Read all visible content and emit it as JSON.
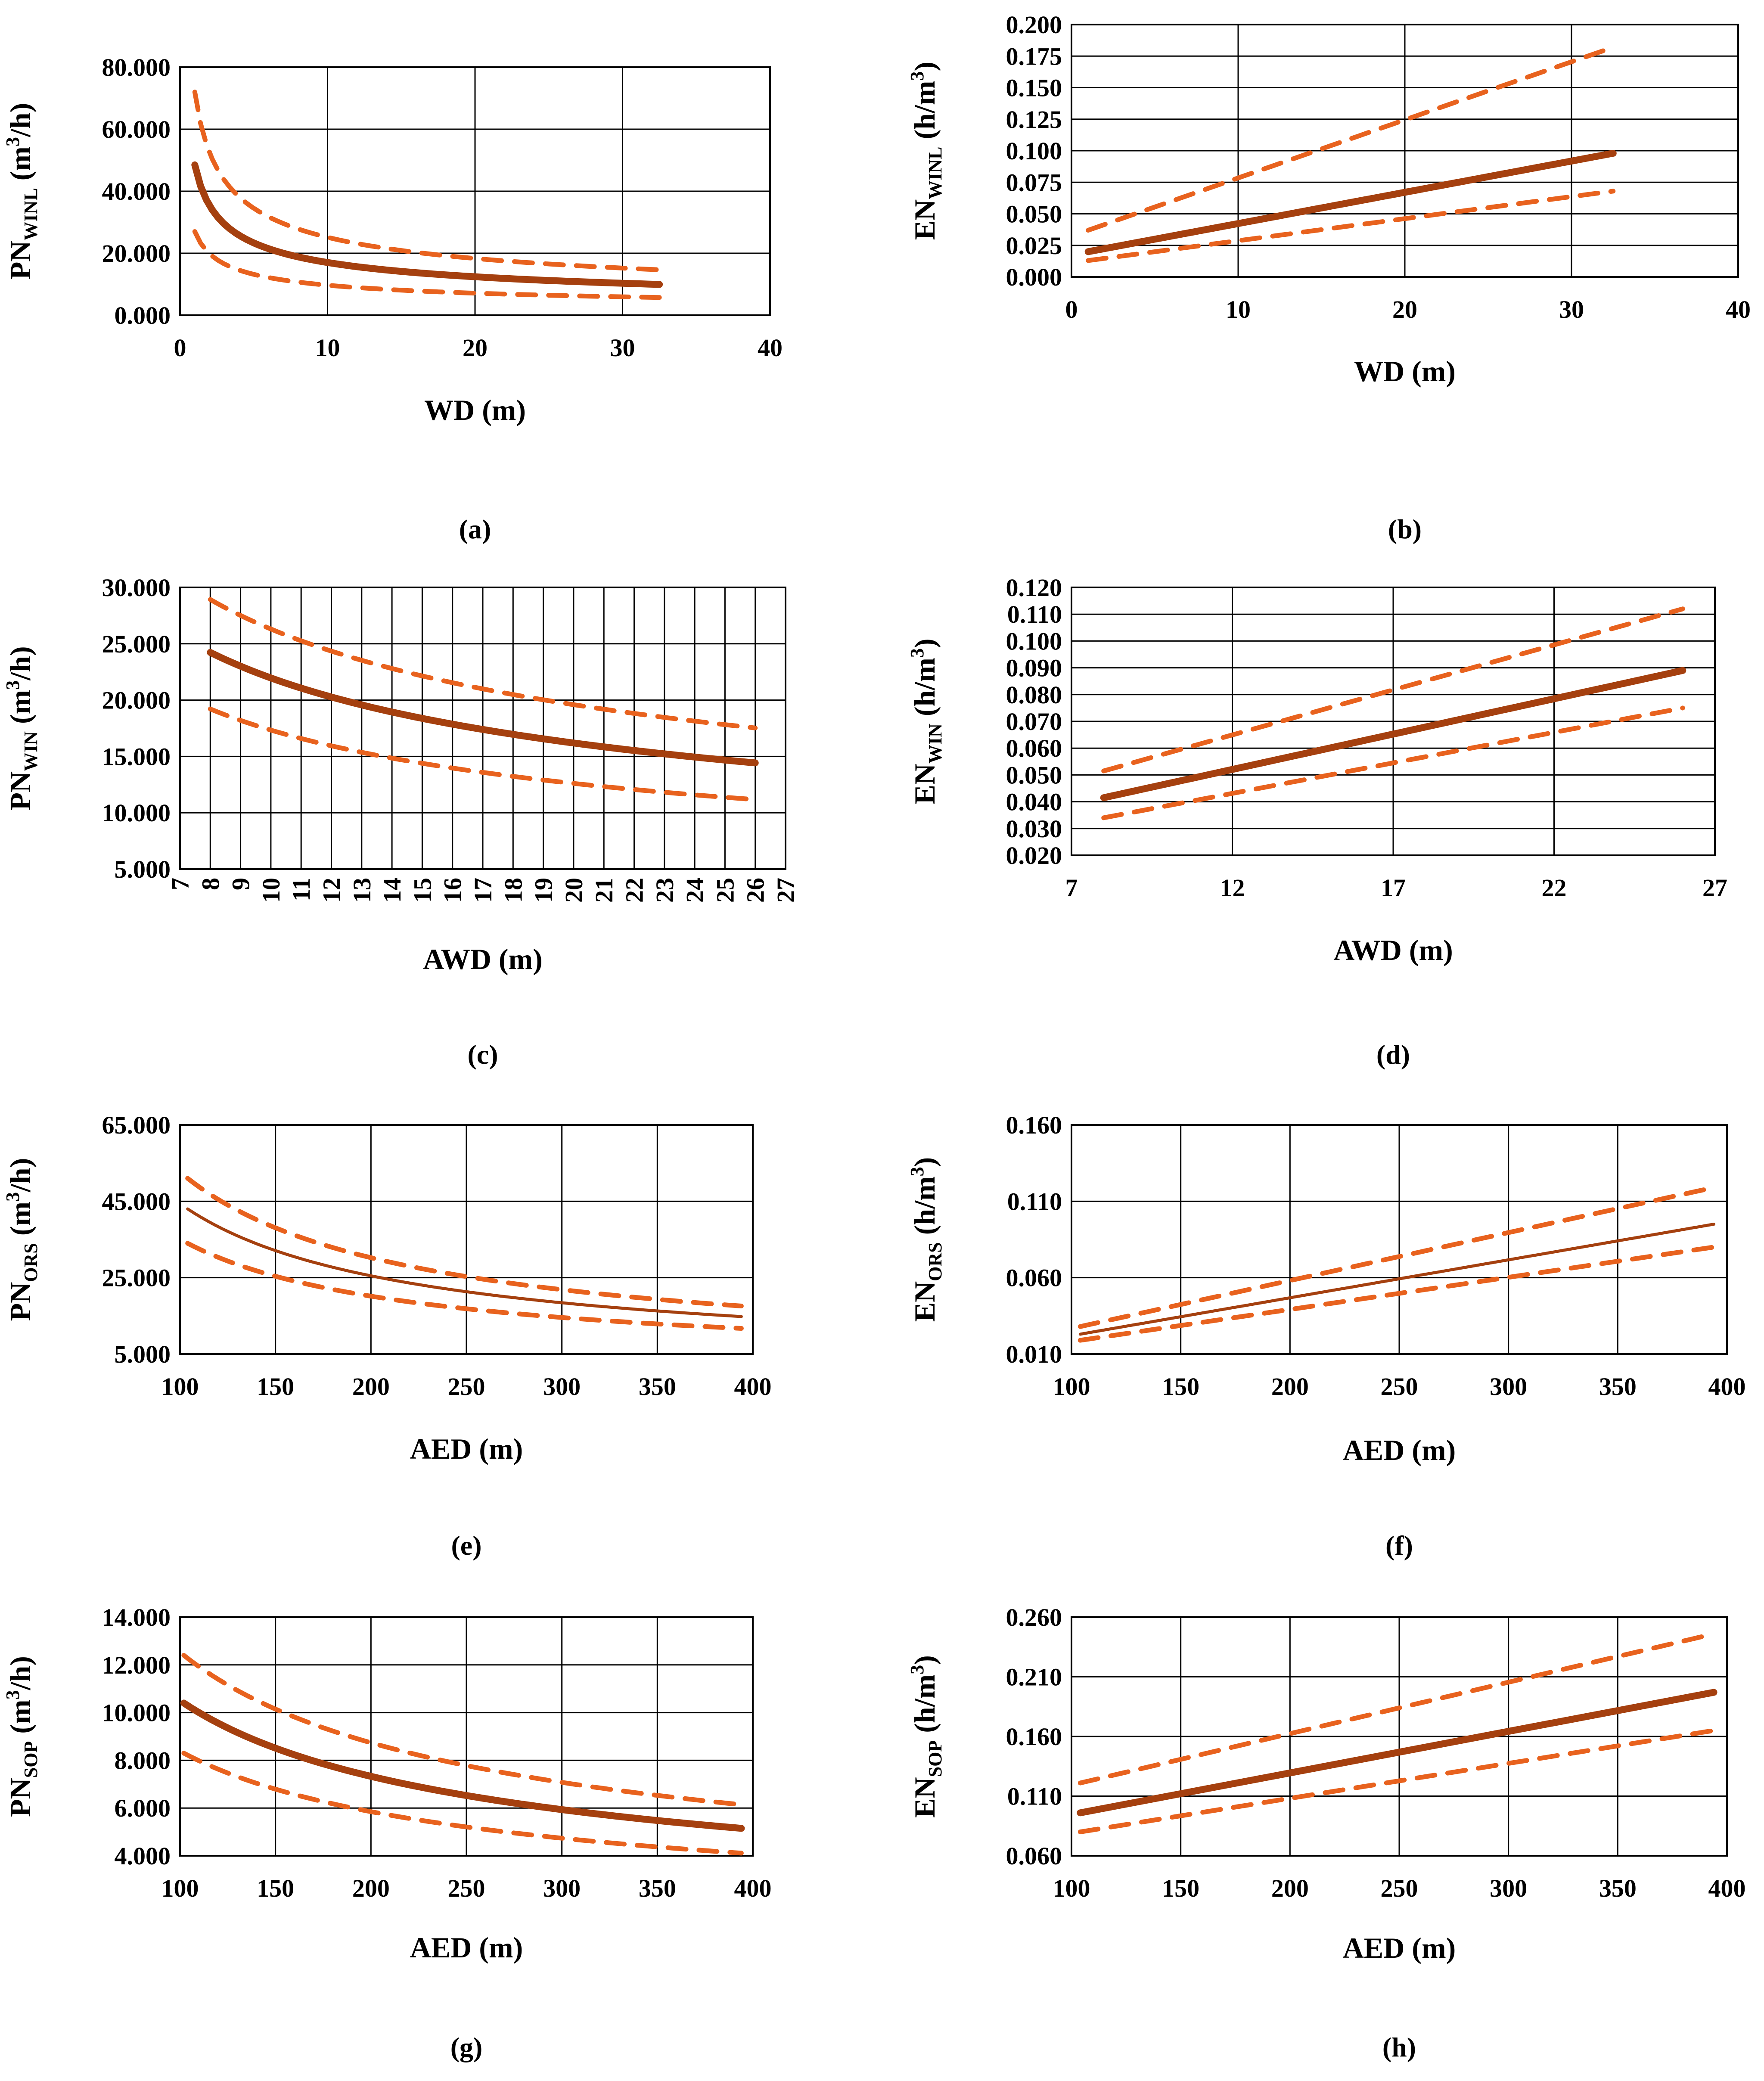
{
  "figure": {
    "title": "",
    "colors": {
      "fit": "#A5400F",
      "bands": "#E8621E",
      "grid": "#000000"
    }
  },
  "chart_data": [
    {
      "id": "a",
      "panel_label": "(a)",
      "type": "line",
      "xlabel": "WD (m)",
      "ylabel": {
        "base": "PN",
        "sub": "WINL",
        "pre_sup": " (m",
        "sup": "3",
        "post": "/h)"
      },
      "xlim": [
        0,
        40
      ],
      "ylim": [
        0,
        80000
      ],
      "xticks": [
        0,
        10,
        20,
        30,
        40
      ],
      "xtick_labels": [
        "0",
        "10",
        "20",
        "30",
        "40"
      ],
      "yticks": [
        0,
        20000,
        40000,
        60000,
        80000
      ],
      "ytick_labels": [
        "0.000",
        "20.000",
        "40.000",
        "60.000",
        "80.000"
      ],
      "fit_width": "thick",
      "series": [
        {
          "name": "fit",
          "style": "solid",
          "fn": "power",
          "a": 48500,
          "b": -0.455,
          "x_range": [
            1,
            32.5
          ]
        },
        {
          "name": "upper",
          "style": "dashed",
          "fn": "power",
          "a": 72000,
          "b": -0.457,
          "x_range": [
            1,
            32.5
          ]
        },
        {
          "name": "lower",
          "style": "dashed",
          "fn": "power",
          "a": 27000,
          "b": -0.445,
          "x_range": [
            1,
            32.5
          ]
        }
      ]
    },
    {
      "id": "b",
      "panel_label": "(b)",
      "type": "line",
      "xlabel": "WD (m)",
      "ylabel": {
        "base": "EN",
        "sub": "WINL",
        "pre_sup": " (h/m",
        "sup": "3",
        "post": ")"
      },
      "xlim": [
        0,
        40
      ],
      "ylim": [
        0,
        0.2
      ],
      "xticks": [
        0,
        10,
        20,
        30,
        40
      ],
      "xtick_labels": [
        "0",
        "10",
        "20",
        "30",
        "40"
      ],
      "yticks": [
        0,
        0.025,
        0.05,
        0.075,
        0.1,
        0.125,
        0.15,
        0.175,
        0.2
      ],
      "ytick_labels": [
        "0.000",
        "0.025",
        "0.050",
        "0.075",
        "0.100",
        "0.125",
        "0.150",
        "0.175",
        "0.200"
      ],
      "fit_width": "thick",
      "series": [
        {
          "name": "fit",
          "style": "solid",
          "fn": "linear",
          "x": [
            1,
            32.5
          ],
          "y": [
            0.02,
            0.098
          ]
        },
        {
          "name": "upper",
          "style": "dashed",
          "fn": "linear",
          "x": [
            1,
            32.5
          ],
          "y": [
            0.037,
            0.182
          ]
        },
        {
          "name": "lower",
          "style": "dashed",
          "fn": "linear",
          "x": [
            1,
            32.5
          ],
          "y": [
            0.013,
            0.068
          ]
        }
      ]
    },
    {
      "id": "c",
      "panel_label": "(c)",
      "type": "line",
      "xlabel": "AWD (m)",
      "ylabel": {
        "base": "PN",
        "sub": "WIN",
        "pre_sup": " (m",
        "sup": "3",
        "post": "/h)"
      },
      "xlim": [
        7,
        27
      ],
      "ylim": [
        5000,
        30000
      ],
      "xticks": [
        7,
        8,
        9,
        10,
        11,
        12,
        13,
        14,
        15,
        16,
        17,
        18,
        19,
        20,
        21,
        22,
        23,
        24,
        25,
        26,
        27
      ],
      "xtick_labels": [
        "7",
        "8",
        "9",
        "10",
        "11",
        "12",
        "13",
        "14",
        "15",
        "16",
        "17",
        "18",
        "19",
        "20",
        "21",
        "22",
        "23",
        "24",
        "25",
        "26",
        "27"
      ],
      "xtick_rotate": true,
      "yticks": [
        5000,
        10000,
        15000,
        20000,
        25000,
        30000
      ],
      "ytick_labels": [
        "5.000",
        "10.000",
        "15.000",
        "20.000",
        "25.000",
        "30.000"
      ],
      "fit_width": "thick",
      "series": [
        {
          "name": "fit",
          "style": "solid",
          "fn": "power",
          "a": 60500,
          "b": -0.44,
          "x_range": [
            8,
            26
          ]
        },
        {
          "name": "upper",
          "style": "dashed",
          "fn": "power",
          "a": 70000,
          "b": -0.425,
          "x_range": [
            8,
            26
          ]
        },
        {
          "name": "lower",
          "style": "dashed",
          "fn": "power",
          "a": 50000,
          "b": -0.46,
          "x_range": [
            8,
            26
          ]
        }
      ]
    },
    {
      "id": "d",
      "panel_label": "(d)",
      "type": "line",
      "xlabel": "AWD (m)",
      "ylabel": {
        "base": "EN",
        "sub": "WIN",
        "pre_sup": " (h/m",
        "sup": "3",
        "post": ")"
      },
      "xlim": [
        7,
        27
      ],
      "ylim": [
        0.02,
        0.12
      ],
      "xticks": [
        7,
        12,
        17,
        22,
        27
      ],
      "xtick_labels": [
        "7",
        "12",
        "17",
        "22",
        "27"
      ],
      "yticks": [
        0.02,
        0.03,
        0.04,
        0.05,
        0.06,
        0.07,
        0.08,
        0.09,
        0.1,
        0.11,
        0.12
      ],
      "ytick_labels": [
        "0.020",
        "0.030",
        "0.040",
        "0.050",
        "0.060",
        "0.070",
        "0.080",
        "0.090",
        "0.100",
        "0.110",
        "0.120"
      ],
      "fit_width": "thick",
      "series": [
        {
          "name": "fit",
          "style": "solid",
          "fn": "linear",
          "x": [
            8,
            26
          ],
          "y": [
            0.0415,
            0.089
          ]
        },
        {
          "name": "upper",
          "style": "dashed",
          "fn": "linear",
          "x": [
            8,
            26
          ],
          "y": [
            0.0515,
            0.112
          ]
        },
        {
          "name": "lower",
          "style": "dashed",
          "fn": "linear",
          "x": [
            8,
            26
          ],
          "y": [
            0.034,
            0.075
          ]
        }
      ]
    },
    {
      "id": "e",
      "panel_label": "(e)",
      "type": "line",
      "xlabel": "AED (m)",
      "ylabel": {
        "base": "PN",
        "sub": "ORS",
        "pre_sup": " (m",
        "sup": "3",
        "post": "/h)"
      },
      "xlim": [
        100,
        400
      ],
      "ylim": [
        5000,
        65000
      ],
      "xticks": [
        100,
        150,
        200,
        250,
        300,
        350,
        400
      ],
      "xtick_labels": [
        "100",
        "150",
        "200",
        "250",
        "300",
        "350",
        "400"
      ],
      "yticks": [
        5000,
        25000,
        45000,
        65000
      ],
      "ytick_labels": [
        "5.000",
        "25.000",
        "45.000",
        "65.000"
      ],
      "fit_width": "thin",
      "series": [
        {
          "name": "fit",
          "style": "solid",
          "fn": "power",
          "a": 43000,
          "b": -0.8,
          "x_range": [
            104,
            394
          ],
          "x0": 104
        },
        {
          "name": "upper",
          "style": "dashed",
          "fn": "power",
          "a": 51000,
          "b": -0.8,
          "x_range": [
            104,
            394
          ],
          "x0": 104
        },
        {
          "name": "lower",
          "style": "dashed",
          "fn": "power",
          "a": 34000,
          "b": -0.8,
          "x_range": [
            104,
            394
          ],
          "x0": 104
        }
      ]
    },
    {
      "id": "f",
      "panel_label": "(f)",
      "type": "line",
      "xlabel": "AED (m)",
      "ylabel": {
        "base": "EN",
        "sub": "ORS",
        "pre_sup": " (h/m",
        "sup": "3",
        "post": ")"
      },
      "xlim": [
        100,
        400
      ],
      "ylim": [
        0.01,
        0.16
      ],
      "xticks": [
        100,
        150,
        200,
        250,
        300,
        350,
        400
      ],
      "xtick_labels": [
        "100",
        "150",
        "200",
        "250",
        "300",
        "350",
        "400"
      ],
      "yticks": [
        0.01,
        0.06,
        0.11,
        0.16
      ],
      "ytick_labels": [
        "0.010",
        "0.060",
        "0.110",
        "0.160"
      ],
      "fit_width": "thin",
      "series": [
        {
          "name": "fit",
          "style": "solid",
          "fn": "linear",
          "x": [
            104,
            394
          ],
          "y": [
            0.023,
            0.095
          ]
        },
        {
          "name": "upper",
          "style": "dashed",
          "fn": "linear",
          "x": [
            104,
            394
          ],
          "y": [
            0.028,
            0.119
          ]
        },
        {
          "name": "lower",
          "style": "dashed",
          "fn": "linear",
          "x": [
            104,
            394
          ],
          "y": [
            0.019,
            0.08
          ]
        }
      ]
    },
    {
      "id": "g",
      "panel_label": "(g)",
      "type": "line",
      "xlabel": "AED (m)",
      "ylabel": {
        "base": "PN",
        "sub": "SOP",
        "pre_sup": " (m",
        "sup": "3",
        "post": "/h)"
      },
      "xlim": [
        100,
        400
      ],
      "ylim": [
        4000,
        14000
      ],
      "xticks": [
        100,
        150,
        200,
        250,
        300,
        350,
        400
      ],
      "xtick_labels": [
        "100",
        "150",
        "200",
        "250",
        "300",
        "350",
        "400"
      ],
      "yticks": [
        4000,
        6000,
        8000,
        10000,
        12000,
        14000
      ],
      "ytick_labels": [
        "4.000",
        "6.000",
        "8.000",
        "10.000",
        "12.000",
        "14.000"
      ],
      "fit_width": "thick",
      "series": [
        {
          "name": "fit",
          "style": "solid",
          "fn": "power",
          "a": 10400,
          "b": -0.52,
          "x_range": [
            102,
            394
          ],
          "x0": 102
        },
        {
          "name": "upper",
          "style": "dashed",
          "fn": "power",
          "a": 12400,
          "b": -0.52,
          "x_range": [
            102,
            394
          ],
          "x0": 102
        },
        {
          "name": "lower",
          "style": "dashed",
          "fn": "power",
          "a": 8300,
          "b": -0.52,
          "x_range": [
            102,
            394
          ],
          "x0": 102
        }
      ]
    },
    {
      "id": "h",
      "panel_label": "(h)",
      "type": "line",
      "xlabel": "AED (m)",
      "ylabel": {
        "base": "EN",
        "sub": "SOP",
        "pre_sup": " (h/m",
        "sup": "3",
        "post": ")"
      },
      "xlim": [
        100,
        400
      ],
      "ylim": [
        0.06,
        0.26
      ],
      "xticks": [
        100,
        150,
        200,
        250,
        300,
        350,
        400
      ],
      "xtick_labels": [
        "100",
        "150",
        "200",
        "250",
        "300",
        "350",
        "400"
      ],
      "yticks": [
        0.06,
        0.11,
        0.16,
        0.21,
        0.26
      ],
      "ytick_labels": [
        "0.060",
        "0.110",
        "0.160",
        "0.210",
        "0.260"
      ],
      "fit_width": "thick",
      "series": [
        {
          "name": "fit",
          "style": "solid",
          "fn": "linear",
          "x": [
            104,
            394
          ],
          "y": [
            0.096,
            0.197
          ]
        },
        {
          "name": "upper",
          "style": "dashed",
          "fn": "linear",
          "x": [
            104,
            394
          ],
          "y": [
            0.121,
            0.246
          ]
        },
        {
          "name": "lower",
          "style": "dashed",
          "fn": "linear",
          "x": [
            104,
            394
          ],
          "y": [
            0.08,
            0.165
          ]
        }
      ]
    }
  ]
}
